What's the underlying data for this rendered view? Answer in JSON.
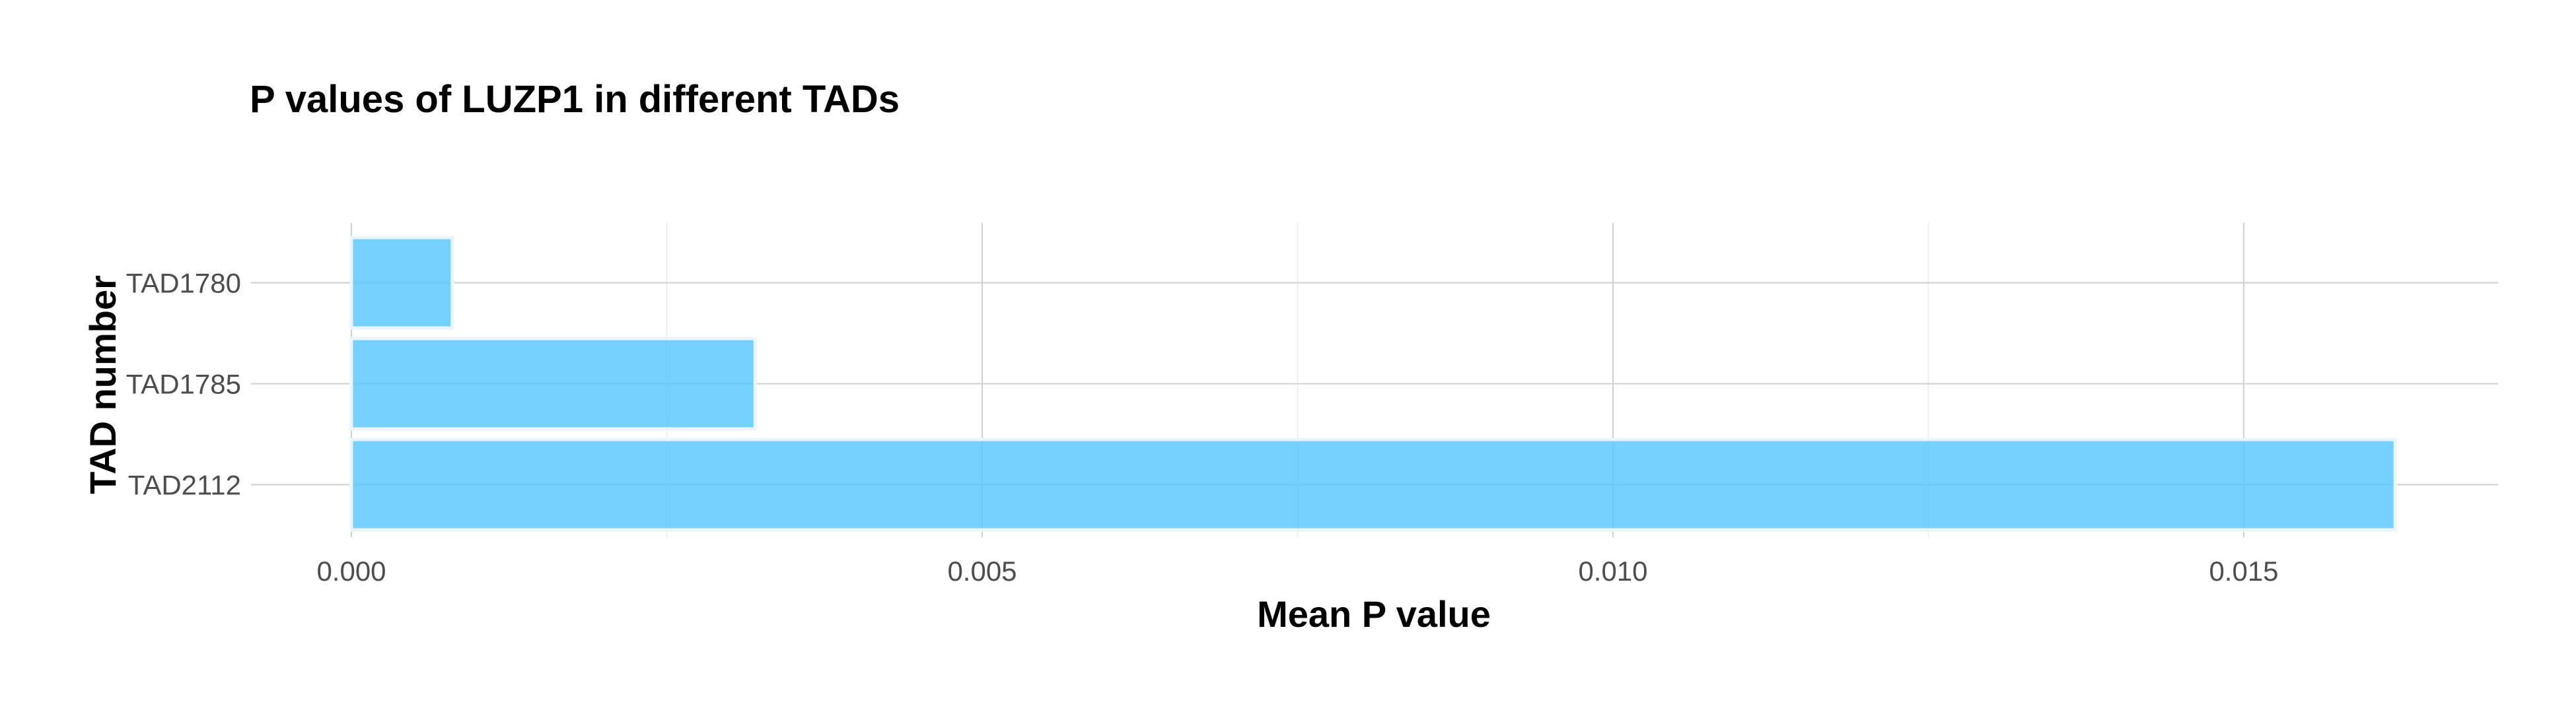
{
  "chart_data": {
    "type": "bar",
    "orientation": "horizontal",
    "title": "P values of LUZP1 in different TADs",
    "xlabel": "Mean P value",
    "ylabel": "TAD number",
    "categories": [
      "TAD1780",
      "TAD1785",
      "TAD2112"
    ],
    "values": [
      0.0008,
      0.0032,
      0.0162
    ],
    "xlim": [
      0,
      0.017
    ],
    "xticks": [
      0.0,
      0.005,
      0.01,
      0.015
    ],
    "xtick_labels": [
      "0.000",
      "0.005",
      "0.010",
      "0.015"
    ],
    "grid": true,
    "legend": "none",
    "bar_color": "#5ec8fb"
  }
}
